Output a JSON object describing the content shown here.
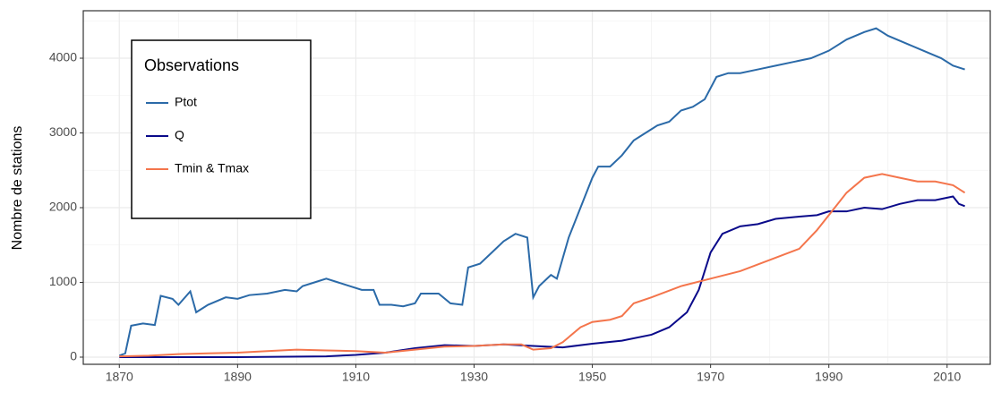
{
  "chart_data": {
    "type": "line",
    "ylabel": "Nombre de stations",
    "legend_title": "Observations",
    "legend_position": "top-left",
    "grid": true,
    "xlim": [
      1863.9,
      2017.3
    ],
    "ylim": [
      -96,
      4635
    ],
    "xticks": [
      1870,
      1890,
      1910,
      1930,
      1950,
      1970,
      1990,
      2010
    ],
    "yticks": [
      0,
      1000,
      2000,
      3000,
      4000
    ],
    "xminorticks": [
      1880,
      1900,
      1920,
      1940,
      1960,
      1980,
      2000
    ],
    "yminorticks": [
      500,
      1500,
      2500,
      3500,
      4500
    ],
    "series": [
      {
        "name": "Ptot",
        "color": "#2b6aa8",
        "x": [
          1870,
          1871,
          1872,
          1874,
          1876,
          1877,
          1879,
          1880,
          1882,
          1883,
          1885,
          1888,
          1890,
          1892,
          1895,
          1898,
          1900,
          1901,
          1903,
          1905,
          1907,
          1909,
          1911,
          1913,
          1914,
          1916,
          1918,
          1920,
          1921,
          1924,
          1926,
          1928,
          1929,
          1931,
          1933,
          1935,
          1937,
          1939,
          1940,
          1941,
          1943,
          1944,
          1946,
          1948,
          1950,
          1951,
          1953,
          1955,
          1957,
          1959,
          1961,
          1963,
          1965,
          1967,
          1969,
          1971,
          1973,
          1975,
          1978,
          1981,
          1984,
          1987,
          1990,
          1993,
          1996,
          1998,
          2000,
          2003,
          2006,
          2009,
          2011,
          2013
        ],
        "values": [
          20,
          50,
          420,
          450,
          430,
          820,
          780,
          700,
          880,
          600,
          700,
          800,
          780,
          830,
          850,
          900,
          880,
          950,
          1000,
          1050,
          1000,
          950,
          900,
          900,
          700,
          700,
          680,
          720,
          850,
          850,
          720,
          700,
          1200,
          1250,
          1400,
          1550,
          1650,
          1600,
          800,
          950,
          1100,
          1050,
          1600,
          2000,
          2400,
          2550,
          2550,
          2700,
          2900,
          3000,
          3100,
          3150,
          3300,
          3350,
          3450,
          3750,
          3800,
          3800,
          3850,
          3900,
          3950,
          4000,
          4100,
          4250,
          4350,
          4400,
          4300,
          4200,
          4100,
          4000,
          3900,
          3850
        ]
      },
      {
        "name": "Q",
        "color": "#0a0a8a",
        "x": [
          1870,
          1890,
          1905,
          1910,
          1915,
          1920,
          1925,
          1930,
          1935,
          1940,
          1945,
          1950,
          1955,
          1960,
          1963,
          1966,
          1968,
          1970,
          1972,
          1975,
          1978,
          1981,
          1985,
          1988,
          1990,
          1993,
          1996,
          1999,
          2002,
          2005,
          2008,
          2011,
          2012,
          2013
        ],
        "values": [
          0,
          0,
          10,
          30,
          60,
          120,
          160,
          150,
          170,
          150,
          130,
          180,
          220,
          300,
          400,
          600,
          900,
          1400,
          1650,
          1750,
          1780,
          1850,
          1880,
          1900,
          1950,
          1950,
          2000,
          1980,
          2050,
          2100,
          2100,
          2150,
          2050,
          2020
        ]
      },
      {
        "name": "Tmin & Tmax",
        "color": "#f4754c",
        "x": [
          1870,
          1875,
          1880,
          1885,
          1890,
          1895,
          1900,
          1905,
          1910,
          1915,
          1920,
          1925,
          1930,
          1935,
          1938,
          1940,
          1943,
          1945,
          1948,
          1950,
          1953,
          1955,
          1957,
          1960,
          1965,
          1970,
          1975,
          1980,
          1985,
          1988,
          1990,
          1993,
          1996,
          1999,
          2002,
          2005,
          2008,
          2011,
          2013
        ],
        "values": [
          10,
          20,
          40,
          50,
          60,
          80,
          100,
          90,
          80,
          60,
          100,
          140,
          150,
          170,
          170,
          100,
          120,
          200,
          400,
          470,
          500,
          550,
          720,
          800,
          950,
          1050,
          1150,
          1300,
          1450,
          1700,
          1900,
          2200,
          2400,
          2450,
          2400,
          2350,
          2350,
          2300,
          2200
        ]
      }
    ]
  }
}
